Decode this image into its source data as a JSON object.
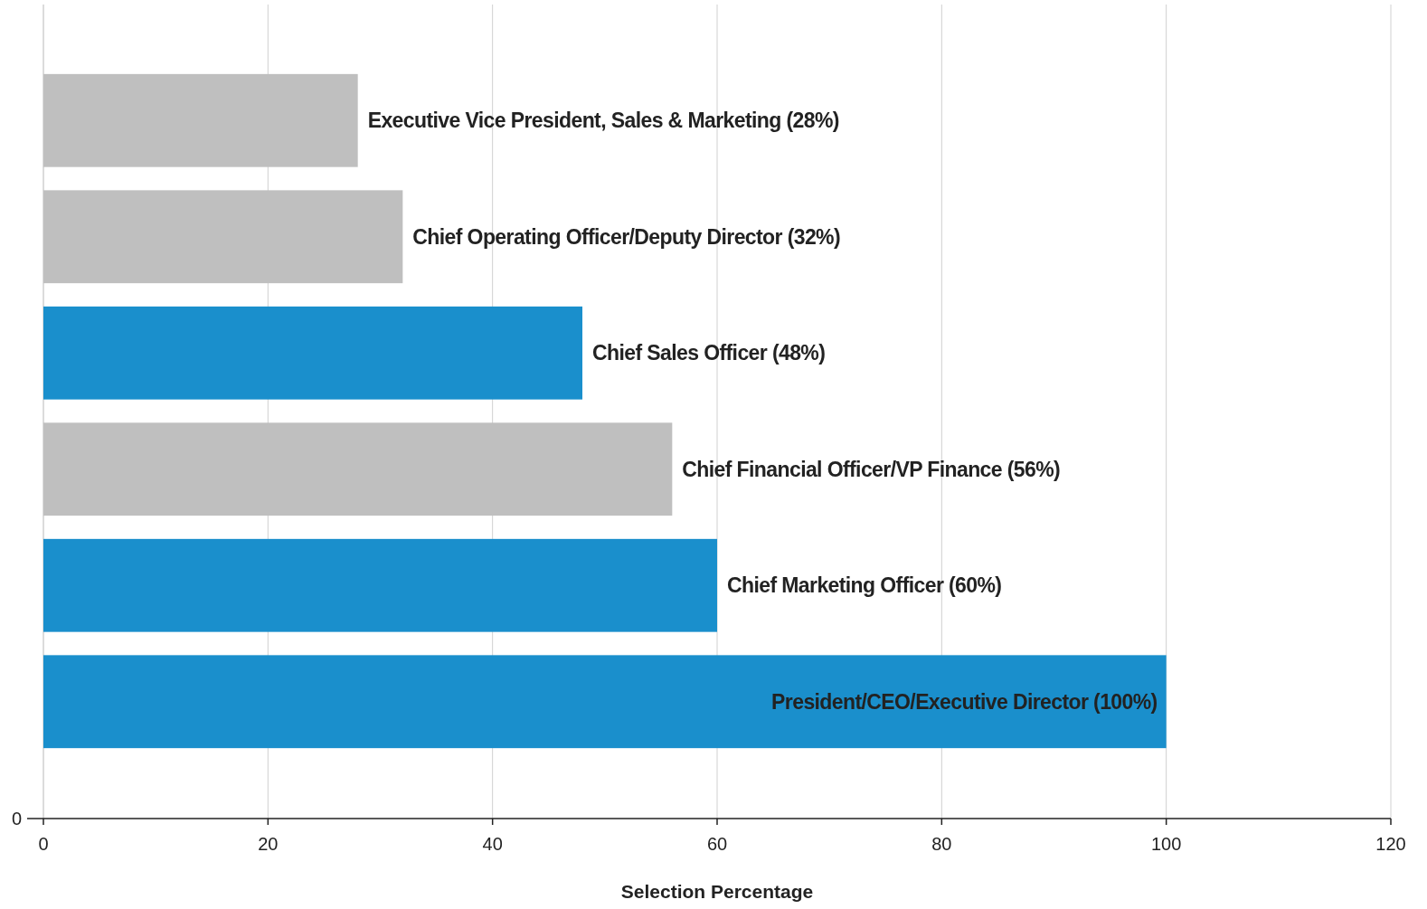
{
  "chart_data": {
    "type": "bar",
    "orientation": "horizontal",
    "xlabel": "Selection Percentage",
    "categories": [
      null,
      null,
      null,
      null,
      null,
      null
    ],
    "values": [
      28,
      32,
      48,
      56,
      60,
      100
    ],
    "colors": [
      "#bfbfbf",
      "#bfbfbf",
      "#1a8fcc",
      "#bfbfbf",
      "#1a8fcc",
      "#1a8fcc"
    ],
    "value_labels": [
      "Executive Vice President, Sales & Marketing (28%)",
      "Chief Operating Officer/Deputy Director (32%)",
      "Chief Sales Officer (48%)",
      "Chief Financial Officer/VP Finance (56%)",
      "Chief Marketing Officer (60%)",
      "President/CEO/Executive Director (100%)"
    ],
    "xlim": [
      0,
      120
    ],
    "xticks": [
      0,
      20,
      40,
      60,
      80,
      100,
      120
    ],
    "grid": "x",
    "annotations": [
      "0"
    ]
  }
}
